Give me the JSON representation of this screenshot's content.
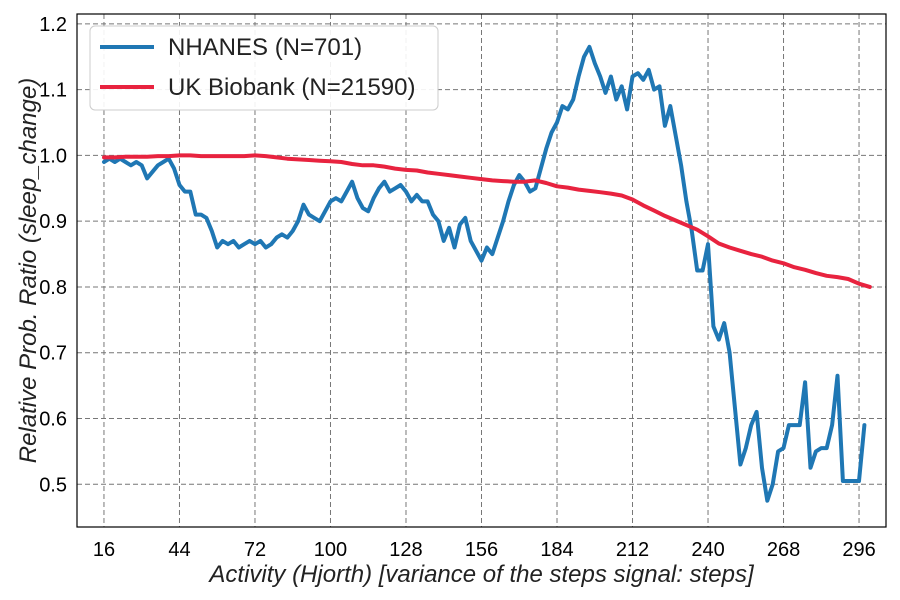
{
  "chart_data": {
    "type": "line",
    "xlabel": "Activity (Hjorth) [variance of the steps signal: steps]",
    "ylabel": "Relative Prob. Ratio (sleep_change)",
    "xlim": [
      6,
      306
    ],
    "ylim": [
      0.435,
      1.215
    ],
    "xticks": [
      "16",
      "44",
      "72",
      "100",
      "128",
      "156",
      "184",
      "212",
      "240",
      "268",
      "296"
    ],
    "yticks": [
      "0.5",
      "0.6",
      "0.7",
      "0.8",
      "0.9",
      "1.0",
      "1.1",
      "1.2"
    ],
    "grid": true,
    "legend_position": "top-left",
    "series": [
      {
        "name": "NHANES (N=701)",
        "color": "#1f77b4",
        "x": [
          16,
          18,
          20,
          22,
          24,
          26,
          28,
          30,
          32,
          34,
          36,
          38,
          40,
          42,
          44,
          46,
          48,
          50,
          52,
          54,
          56,
          58,
          60,
          62,
          64,
          66,
          68,
          70,
          72,
          74,
          76,
          78,
          80,
          82,
          84,
          86,
          88,
          90,
          92,
          94,
          96,
          98,
          100,
          102,
          104,
          106,
          108,
          110,
          112,
          114,
          116,
          118,
          120,
          122,
          124,
          126,
          128,
          130,
          132,
          134,
          136,
          138,
          140,
          142,
          144,
          146,
          148,
          150,
          152,
          154,
          156,
          158,
          160,
          162,
          164,
          166,
          168,
          170,
          172,
          174,
          176,
          178,
          180,
          182,
          184,
          186,
          188,
          190,
          192,
          194,
          196,
          198,
          200,
          202,
          204,
          206,
          208,
          210,
          212,
          214,
          216,
          218,
          220,
          222,
          224,
          226,
          228,
          230,
          232,
          234,
          236,
          238,
          240,
          242,
          244,
          246,
          248,
          250,
          252,
          254,
          256,
          258,
          260,
          262,
          264,
          266,
          268,
          270,
          272,
          274,
          276,
          278,
          280,
          282,
          284,
          286,
          288,
          290,
          292,
          294,
          296,
          298
        ],
        "y": [
          0.99,
          0.995,
          0.99,
          0.995,
          0.99,
          0.985,
          0.99,
          0.985,
          0.965,
          0.975,
          0.985,
          0.99,
          0.995,
          0.98,
          0.955,
          0.945,
          0.945,
          0.91,
          0.91,
          0.905,
          0.885,
          0.86,
          0.87,
          0.865,
          0.87,
          0.86,
          0.865,
          0.87,
          0.865,
          0.87,
          0.86,
          0.865,
          0.875,
          0.88,
          0.875,
          0.885,
          0.9,
          0.925,
          0.91,
          0.905,
          0.9,
          0.915,
          0.93,
          0.935,
          0.93,
          0.945,
          0.96,
          0.935,
          0.92,
          0.915,
          0.935,
          0.95,
          0.96,
          0.945,
          0.95,
          0.955,
          0.945,
          0.93,
          0.94,
          0.93,
          0.93,
          0.91,
          0.9,
          0.87,
          0.89,
          0.86,
          0.895,
          0.905,
          0.87,
          0.855,
          0.84,
          0.86,
          0.85,
          0.875,
          0.9,
          0.93,
          0.955,
          0.97,
          0.96,
          0.945,
          0.95,
          0.98,
          1.01,
          1.035,
          1.05,
          1.075,
          1.07,
          1.085,
          1.12,
          1.15,
          1.165,
          1.14,
          1.12,
          1.095,
          1.12,
          1.085,
          1.105,
          1.07,
          1.12,
          1.125,
          1.115,
          1.13,
          1.1,
          1.105,
          1.045,
          1.075,
          1.03,
          0.985,
          0.93,
          0.885,
          0.825,
          0.825,
          0.865,
          0.74,
          0.72,
          0.745,
          0.7,
          0.615,
          0.53,
          0.555,
          0.59,
          0.61,
          0.525,
          0.475,
          0.5,
          0.55,
          0.555,
          0.59,
          0.59,
          0.59,
          0.655,
          0.525,
          0.55,
          0.555,
          0.555,
          0.59,
          0.665,
          0.505,
          0.505,
          0.505,
          0.505,
          0.59
        ],
        "xs": [
          16,
          20,
          24,
          28,
          32,
          36,
          40,
          44,
          48,
          52,
          56,
          60,
          64,
          68,
          72,
          76,
          80,
          84,
          88,
          92,
          96,
          100,
          104,
          108,
          112,
          116,
          120,
          124,
          128,
          132,
          136,
          140,
          144,
          148,
          152,
          156,
          160,
          164,
          168,
          172,
          176,
          180,
          184,
          188,
          192,
          196,
          200,
          204,
          208,
          212,
          216,
          220,
          224,
          228,
          232,
          236,
          240,
          244,
          248,
          252,
          256,
          260,
          264,
          268,
          272,
          276,
          280,
          284,
          288,
          292,
          296,
          300
        ]
      },
      {
        "name": "UK Biobank (N=21590)",
        "color": "#e8233f",
        "x": [
          16,
          20,
          24,
          28,
          32,
          36,
          40,
          44,
          48,
          52,
          56,
          60,
          64,
          68,
          72,
          76,
          80,
          84,
          88,
          92,
          96,
          100,
          104,
          108,
          112,
          116,
          120,
          124,
          128,
          132,
          136,
          140,
          144,
          148,
          152,
          156,
          160,
          164,
          168,
          172,
          176,
          180,
          184,
          188,
          192,
          196,
          200,
          204,
          208,
          212,
          216,
          220,
          224,
          228,
          232,
          236,
          240,
          244,
          248,
          252,
          256,
          260,
          264,
          268,
          272,
          276,
          280,
          284,
          288,
          292,
          296,
          300
        ],
        "y": [
          0.997,
          0.997,
          0.998,
          0.998,
          0.998,
          0.999,
          0.999,
          1.0,
          1.0,
          0.999,
          0.999,
          0.999,
          0.999,
          0.999,
          1.0,
          0.999,
          0.997,
          0.995,
          0.994,
          0.993,
          0.992,
          0.991,
          0.99,
          0.987,
          0.985,
          0.985,
          0.983,
          0.98,
          0.978,
          0.977,
          0.974,
          0.972,
          0.97,
          0.968,
          0.966,
          0.964,
          0.962,
          0.961,
          0.96,
          0.96,
          0.962,
          0.958,
          0.953,
          0.951,
          0.948,
          0.946,
          0.944,
          0.942,
          0.939,
          0.933,
          0.924,
          0.916,
          0.908,
          0.901,
          0.894,
          0.887,
          0.877,
          0.866,
          0.86,
          0.855,
          0.85,
          0.846,
          0.84,
          0.836,
          0.83,
          0.826,
          0.821,
          0.817,
          0.815,
          0.812,
          0.805,
          0.8
        ]
      }
    ]
  }
}
